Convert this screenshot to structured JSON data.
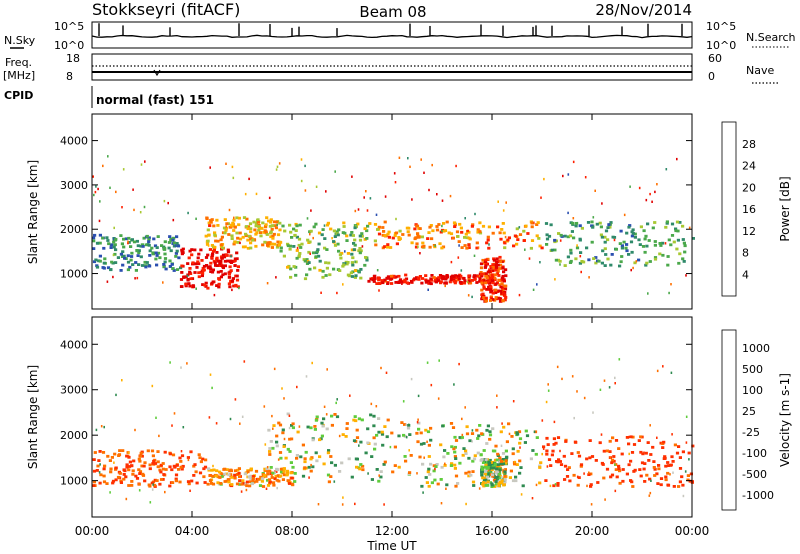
{
  "header": {
    "station": "Stokkseyri (fitACF)",
    "beam": "Beam 08",
    "date": "28/Nov/2014"
  },
  "noise_panel": {
    "left_label": "N.Sky",
    "left_ticks": [
      "10^5",
      "10^0"
    ],
    "right_label": "N.Search",
    "right_ticks": [
      "10^5",
      "10^0"
    ]
  },
  "freq_panel": {
    "left_label_1": "Freq.",
    "left_label_2": "[MHz]",
    "left_ticks": [
      "18",
      "8"
    ],
    "right_label": "Nave",
    "right_ticks": [
      "60",
      "0"
    ]
  },
  "cpid": {
    "label": "CPID",
    "value": "normal (fast) 151"
  },
  "xaxis": {
    "label": "Time UT",
    "ticks": [
      "00:00",
      "04:00",
      "08:00",
      "12:00",
      "16:00",
      "20:00",
      "00:00"
    ]
  },
  "colors": {
    "power_scale": [
      "#1a1aff",
      "#2b4fb0",
      "#2f8a6a",
      "#4aa84a",
      "#a8c832",
      "#ffb000",
      "#ff7000",
      "#ff2000",
      "#e00000"
    ],
    "velocity_scale": [
      "#e00000",
      "#ff3000",
      "#ff7000",
      "#ffb000",
      "#c8c8c0",
      "#c8c8c0",
      "#5fcc3c",
      "#2e8a50",
      "#2a5ab0",
      "#1a3ad0"
    ]
  },
  "chart_data": [
    {
      "type": "heatmap",
      "name": "power",
      "ylabel": "Slant Range [km]",
      "yticks": [
        "1000",
        "2000",
        "3000",
        "4000"
      ],
      "ylim": [
        200,
        4600
      ],
      "xlim_hours": [
        0,
        24
      ],
      "colorbar": {
        "label": "Power [dB]",
        "ticks": [
          "4",
          "8",
          "12",
          "16",
          "20",
          "24",
          "28"
        ],
        "range": [
          0,
          32
        ]
      },
      "bands": [
        {
          "t": [
            0,
            3.5
          ],
          "r": [
            1100,
            1900
          ],
          "level": 9
        },
        {
          "t": [
            3.5,
            5.8
          ],
          "r": [
            700,
            1600
          ],
          "level": 30
        },
        {
          "t": [
            4.5,
            7.5
          ],
          "r": [
            1600,
            2300
          ],
          "level": 20
        },
        {
          "t": [
            7.5,
            11
          ],
          "r": [
            900,
            2200
          ],
          "level": 14
        },
        {
          "t": [
            11,
            16
          ],
          "r": [
            800,
            1000
          ],
          "level": 29
        },
        {
          "t": [
            11,
            18
          ],
          "r": [
            1600,
            2200
          ],
          "level": 22
        },
        {
          "t": [
            15.5,
            16.5
          ],
          "r": [
            400,
            1400
          ],
          "level": 27
        },
        {
          "t": [
            18,
            24
          ],
          "r": [
            1200,
            2200
          ],
          "level": 11
        }
      ]
    },
    {
      "type": "heatmap",
      "name": "velocity",
      "ylabel": "Slant Range [km]",
      "yticks": [
        "1000",
        "2000",
        "3000",
        "4000"
      ],
      "ylim": [
        200,
        4600
      ],
      "xlim_hours": [
        0,
        24
      ],
      "colorbar": {
        "label": "Velocity [m s-1]",
        "ticks": [
          "1000",
          "500",
          "100",
          "25",
          "-25",
          "-100",
          "-500",
          "-1000"
        ]
      },
      "bands": [
        {
          "t": [
            0,
            4.5
          ],
          "r": [
            900,
            1700
          ],
          "velocity": -300
        },
        {
          "t": [
            4.5,
            8
          ],
          "r": [
            900,
            1300
          ],
          "velocity": -150
        },
        {
          "t": [
            7,
            13
          ],
          "r": [
            1000,
            2500
          ],
          "velocity": 0
        },
        {
          "t": [
            13,
            18
          ],
          "r": [
            900,
            2300
          ],
          "velocity": 0
        },
        {
          "t": [
            15.5,
            16.5
          ],
          "r": [
            900,
            1500
          ],
          "velocity": 60
        },
        {
          "t": [
            18,
            24
          ],
          "r": [
            900,
            2000
          ],
          "velocity": -400
        }
      ]
    }
  ]
}
